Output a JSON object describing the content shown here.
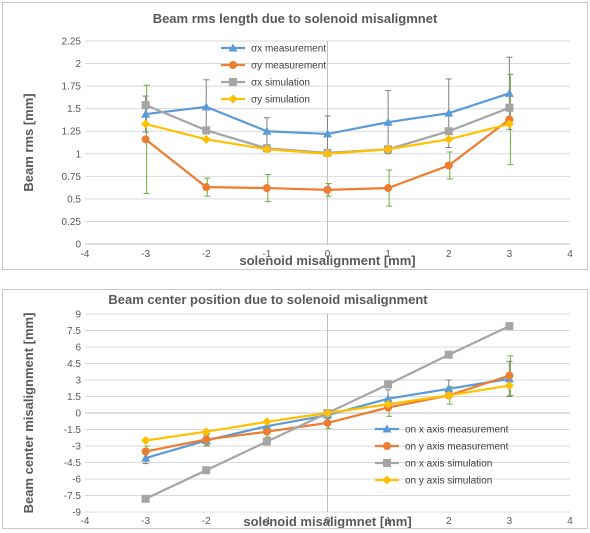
{
  "chart_data": [
    {
      "type": "line",
      "title": "Beam rms  length due to solenoid misaligmnet",
      "xlabel": "solenoid misalignment [mm]",
      "ylabel": "Beam rms [mm]",
      "xlim": [
        -4,
        4
      ],
      "ylim": [
        0,
        2.25
      ],
      "xticks": [
        -4,
        -3,
        -2,
        -1,
        0,
        1,
        2,
        3,
        4
      ],
      "yticks": [
        "0",
        "0.25",
        "0.5",
        "0.75",
        "1",
        "1.25",
        "1.5",
        "1.75",
        "2",
        "2.25"
      ],
      "grid": "horizontal",
      "legend_position": "top-center",
      "x": [
        -3,
        -2,
        -1,
        0,
        1,
        2,
        3
      ],
      "series": [
        {
          "name": "σx measurement",
          "color": "#5b9bd5",
          "marker": "triangle",
          "values": [
            1.44,
            1.52,
            1.25,
            1.22,
            1.35,
            1.45,
            1.67
          ],
          "error": [
            0.2,
            0.3,
            0.15,
            0.2,
            0.35,
            0.38,
            0.4
          ]
        },
        {
          "name": "σy measurement",
          "color": "#ed7d31",
          "marker": "circle",
          "values": [
            1.16,
            0.63,
            0.62,
            0.6,
            0.62,
            0.87,
            1.38
          ],
          "error": [
            0.6,
            0.1,
            0.15,
            0.07,
            0.2,
            0.15,
            0.5
          ]
        },
        {
          "name": "σx simulation",
          "color": "#a5a5a5",
          "marker": "square",
          "values": [
            1.54,
            1.26,
            1.06,
            1.01,
            1.05,
            1.25,
            1.51
          ]
        },
        {
          "name": "σy simulation",
          "color": "#ffc000",
          "marker": "diamond",
          "values": [
            1.33,
            1.16,
            1.05,
            1.0,
            1.05,
            1.16,
            1.33
          ]
        }
      ]
    },
    {
      "type": "line",
      "title": "Beam center position due to  solenoid misalignment",
      "xlabel": "solenoid misaligmnet [mm]",
      "ylabel": "Beam center misalignment  [mm]",
      "xlim": [
        -4,
        4
      ],
      "ylim": [
        -9,
        9
      ],
      "xticks": [
        -4,
        -3,
        -2,
        -1,
        0,
        1,
        2,
        3,
        4
      ],
      "yticks": [
        "-9",
        "-7.5",
        "-6",
        "-4.5",
        "-3",
        "-1.5",
        "0",
        "1.5",
        "3",
        "4.5",
        "6",
        "7.5",
        "9"
      ],
      "grid": "horizontal",
      "legend_position": "bottom-right",
      "x": [
        -3,
        -2,
        -1,
        0,
        1,
        2,
        3
      ],
      "series": [
        {
          "name": "on x axis measurement",
          "color": "#5b9bd5",
          "marker": "triangle",
          "values": [
            -4.1,
            -2.5,
            -1.2,
            -0.2,
            1.3,
            2.2,
            3.1
          ],
          "error": [
            0.5,
            0.5,
            0.5,
            0.5,
            0.8,
            0.8,
            1.6
          ]
        },
        {
          "name": "on y axis measurement",
          "color": "#ed7d31",
          "marker": "circle",
          "values": [
            -3.5,
            -2.4,
            -1.7,
            -0.9,
            0.5,
            1.6,
            3.4
          ],
          "error": [
            0.5,
            0.5,
            0.5,
            0.5,
            0.8,
            0.8,
            1.8
          ]
        },
        {
          "name": "on x axis simulation",
          "color": "#a5a5a5",
          "marker": "square",
          "values": [
            -7.8,
            -5.2,
            -2.6,
            0.0,
            2.6,
            5.3,
            7.9
          ]
        },
        {
          "name": "on y axis simulation",
          "color": "#ffc000",
          "marker": "diamond",
          "values": [
            -2.5,
            -1.7,
            -0.8,
            0.0,
            0.8,
            1.6,
            2.5
          ]
        }
      ]
    }
  ]
}
